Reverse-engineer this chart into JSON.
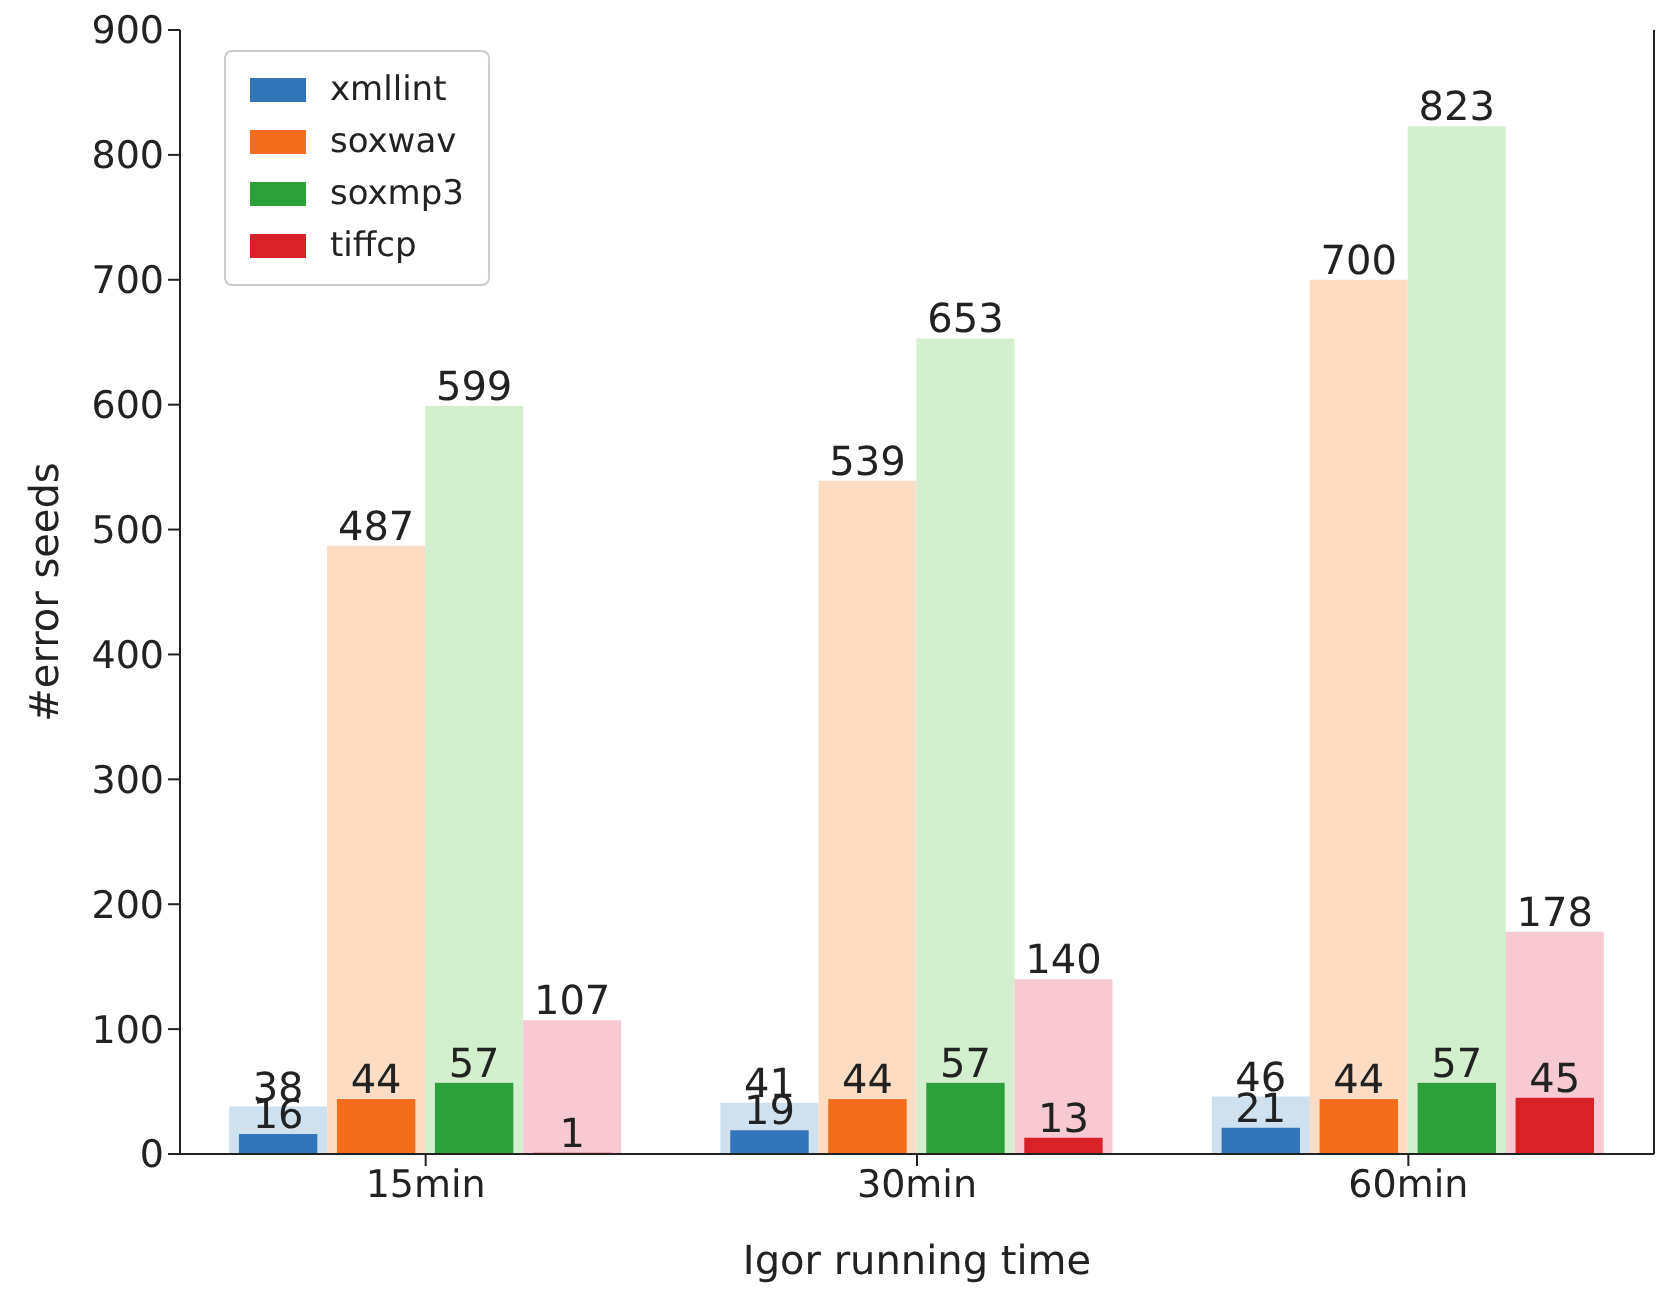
{
  "chart_data": {
    "type": "bar",
    "xlabel": "Igor running time",
    "ylabel": "#error seeds",
    "categories": [
      "15min",
      "30min",
      "60min"
    ],
    "series": [
      {
        "color": "#cfe1ef",
        "values": [
          38,
          41,
          46
        ]
      },
      {
        "color": "#fcdcc3",
        "values": [
          487,
          539,
          700
        ]
      },
      {
        "color": "#d3efcd",
        "values": [
          599,
          653,
          823
        ]
      },
      {
        "color": "#f6c9d3",
        "values": [
          107,
          140,
          178
        ]
      },
      {
        "name": "xmllint",
        "color": "#3174b8",
        "values": [
          16,
          19,
          21
        ]
      },
      {
        "name": "soxwav",
        "color": "#f46d1c",
        "values": [
          44,
          44,
          44
        ]
      },
      {
        "name": "soxmp3",
        "color": "#2ea03a",
        "values": [
          57,
          57,
          57
        ]
      },
      {
        "name": "tiffcp",
        "color": "#d82228",
        "values": [
          1,
          13,
          45
        ]
      }
    ],
    "ylim": [
      0,
      900
    ],
    "yticks": [
      0,
      100,
      200,
      300,
      400,
      500,
      600,
      700,
      800,
      900
    ],
    "data_labels": true,
    "legend": "top left"
  }
}
